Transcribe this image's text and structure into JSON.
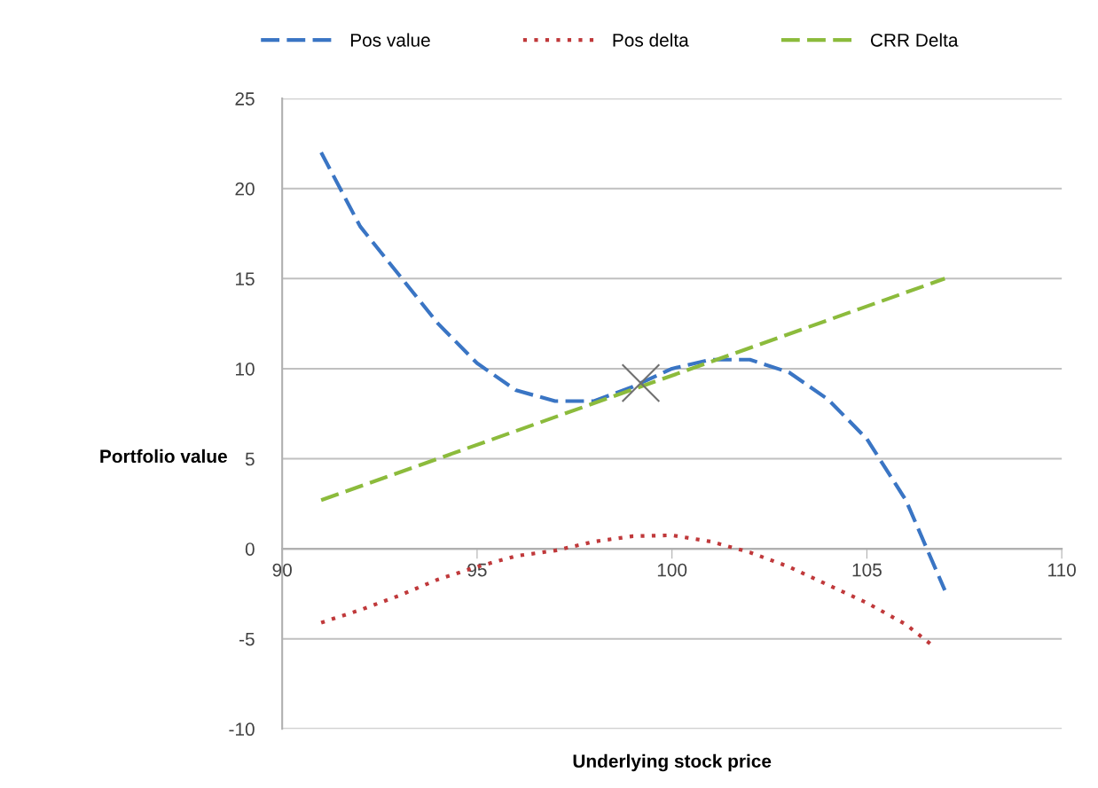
{
  "chart_data": {
    "type": "line",
    "xlabel": "Underlying stock price",
    "ylabel": "Portfolio value",
    "xlim": [
      90,
      110
    ],
    "xticks": [
      90,
      95,
      100,
      105,
      110
    ],
    "ylim": [
      -10,
      25
    ],
    "yticks": [
      -10,
      -5,
      0,
      5,
      10,
      15,
      20,
      25
    ],
    "grid": "y",
    "legend": "top",
    "marker": "none",
    "series": [
      {
        "name": "Pos value",
        "color": "#3a75c4",
        "line_style": "dashed",
        "x": [
          91,
          92,
          93,
          94,
          95,
          96,
          97,
          98,
          99,
          100,
          101,
          102,
          103,
          104,
          105,
          106,
          107
        ],
        "values": [
          22,
          17.9,
          15.2,
          12.5,
          10.3,
          8.8,
          8.2,
          8.2,
          9.0,
          10.0,
          10.5,
          10.5,
          9.8,
          8.3,
          6.1,
          2.7,
          -2.3
        ]
      },
      {
        "name": "Pos delta",
        "color": "#c0393b",
        "line_style": "dotted",
        "x": [
          91,
          92,
          93,
          94,
          95,
          96,
          97,
          98,
          99,
          100,
          101,
          102,
          103,
          104,
          105,
          106,
          106.7
        ],
        "values": [
          -4.1,
          -3.4,
          -2.6,
          -1.7,
          -1.0,
          -0.4,
          -0.1,
          0.4,
          0.7,
          0.75,
          0.4,
          -0.2,
          -1.0,
          -2.0,
          -3.0,
          -4.2,
          -5.4
        ]
      },
      {
        "name": "CRR Delta",
        "color": "#8cbb3c",
        "line_style": "dashed",
        "x": [
          91,
          107
        ],
        "values": [
          2.7,
          15
        ]
      },
      {
        "type": "scatter",
        "marker": "cross",
        "color": "#707070",
        "x": [
          99.2
        ],
        "values": [
          9.2
        ]
      }
    ]
  }
}
